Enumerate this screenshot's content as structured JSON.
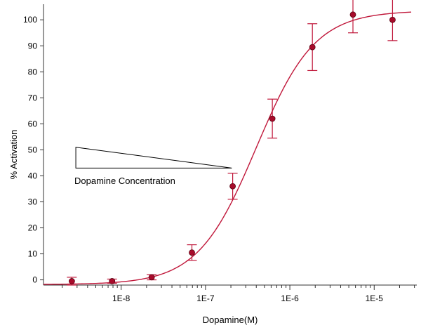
{
  "chart_data": {
    "type": "scatter",
    "title": "",
    "xlabel": "Dopamine(M)",
    "ylabel": "% Activation",
    "x_scale": "log",
    "xlim": [
      1.2e-09,
      3.2e-05
    ],
    "ylim": [
      -2,
      106
    ],
    "x_ticks": [
      1e-08,
      1e-07,
      1e-06,
      1e-05
    ],
    "x_tick_labels": [
      "1E-8",
      "1E-7",
      "1E-6",
      "1E-5"
    ],
    "y_ticks": [
      0,
      10,
      20,
      30,
      40,
      50,
      60,
      70,
      80,
      90,
      100
    ],
    "y_tick_labels": [
      "0",
      "10",
      "20",
      "30",
      "40",
      "50",
      "60",
      "70",
      "80",
      "90",
      "100"
    ],
    "grid": false,
    "colors": {
      "series": "#c0173a",
      "point_fill": "#a80b2b",
      "axis": "#333333"
    },
    "points": [
      {
        "x": 2.6e-09,
        "y": -0.5,
        "err": 1.5
      },
      {
        "x": 7.8e-09,
        "y": -0.5,
        "err": 0.8
      },
      {
        "x": 2.3e-08,
        "y": 1.0,
        "err": 1.0
      },
      {
        "x": 6.9e-08,
        "y": 10.5,
        "err": 3.0
      },
      {
        "x": 2.1e-07,
        "y": 36.0,
        "err": 5.0
      },
      {
        "x": 6.2e-07,
        "y": 62.0,
        "err": 7.5
      },
      {
        "x": 1.85e-06,
        "y": 89.5,
        "err": 9.0
      },
      {
        "x": 5.6e-06,
        "y": 102.0,
        "err": 7.0
      },
      {
        "x": 1.65e-05,
        "y": 100.0,
        "err": 8.0
      }
    ],
    "fit_curve": {
      "bottom": -1.8,
      "top": 103.5,
      "ec50": 4e-07,
      "hill": 1.25
    },
    "annotation": {
      "label": "Dopamine Concentration",
      "wedge": {
        "x_left": 2.9e-09,
        "x_right": 2.05e-07,
        "y_top": 51,
        "y_bottom": 43
      }
    }
  }
}
